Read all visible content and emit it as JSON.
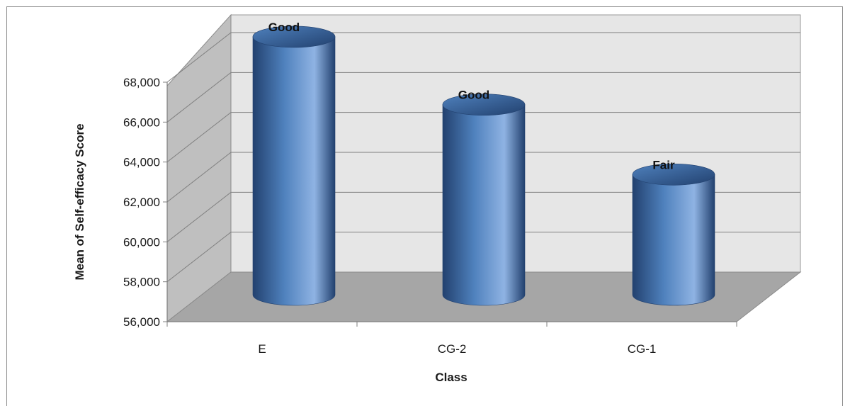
{
  "chart_data": {
    "type": "bar",
    "style": "3d-cylinder",
    "title": "",
    "xlabel": "Class",
    "ylabel": "Mean of Self-efficacy Score",
    "categories": [
      "E",
      "CG-2",
      "CG-1"
    ],
    "values": [
      68.5,
      65.1,
      61.6
    ],
    "data_labels": [
      "Good",
      "Good",
      "Fair"
    ],
    "ylim": [
      56,
      68
    ],
    "yticks": [
      56,
      58,
      60,
      62,
      64,
      66,
      68
    ],
    "ytick_labels": [
      "56,000",
      "58,000",
      "60,000",
      "62,000",
      "64,000",
      "66,000",
      "68,000"
    ],
    "grid": true,
    "legend": "none",
    "colors": {
      "bar": "#4f81bd",
      "bar_dark": "#22416f",
      "bar_light": "#8fb3e3",
      "back_wall": "#e6e6e6",
      "side_wall": "#bfbfbf",
      "floor": "#a6a6a6",
      "gridline": "#7f7f7f"
    }
  }
}
